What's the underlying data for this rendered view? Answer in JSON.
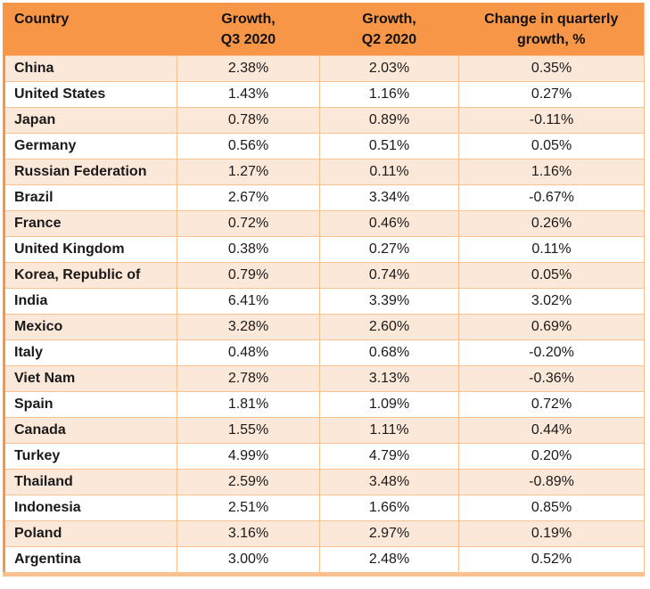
{
  "colors": {
    "header_bg": "#F79646",
    "odd_row_bg": "#FCE8D9",
    "even_row_bg": "#FFFFFF",
    "gridline": "#FAC090",
    "left_border": "#F79646",
    "bottom_border": "#FAC090",
    "text": "#1A1A1A"
  },
  "table": {
    "headers": {
      "country": "Country",
      "q3": "Growth,\nQ3 2020",
      "q2": "Growth,\nQ2 2020",
      "change": "Change in quarterly\ngrowth, %"
    },
    "rows": [
      {
        "country": "China",
        "q3": "2.38%",
        "q2": "2.03%",
        "change": "0.35%"
      },
      {
        "country": "United States",
        "q3": "1.43%",
        "q2": "1.16%",
        "change": "0.27%"
      },
      {
        "country": "Japan",
        "q3": "0.78%",
        "q2": "0.89%",
        "change": "-0.11%"
      },
      {
        "country": "Germany",
        "q3": "0.56%",
        "q2": "0.51%",
        "change": "0.05%"
      },
      {
        "country": "Russian Federation",
        "q3": "1.27%",
        "q2": "0.11%",
        "change": "1.16%"
      },
      {
        "country": "Brazil",
        "q3": "2.67%",
        "q2": "3.34%",
        "change": "-0.67%"
      },
      {
        "country": "France",
        "q3": "0.72%",
        "q2": "0.46%",
        "change": "0.26%"
      },
      {
        "country": "United Kingdom",
        "q3": "0.38%",
        "q2": "0.27%",
        "change": "0.11%"
      },
      {
        "country": "Korea, Republic of",
        "q3": "0.79%",
        "q2": "0.74%",
        "change": "0.05%"
      },
      {
        "country": "India",
        "q3": "6.41%",
        "q2": "3.39%",
        "change": "3.02%"
      },
      {
        "country": "Mexico",
        "q3": "3.28%",
        "q2": "2.60%",
        "change": "0.69%"
      },
      {
        "country": "Italy",
        "q3": "0.48%",
        "q2": "0.68%",
        "change": "-0.20%"
      },
      {
        "country": "Viet Nam",
        "q3": "2.78%",
        "q2": "3.13%",
        "change": "-0.36%"
      },
      {
        "country": "Spain",
        "q3": "1.81%",
        "q2": "1.09%",
        "change": "0.72%"
      },
      {
        "country": "Canada",
        "q3": "1.55%",
        "q2": "1.11%",
        "change": "0.44%"
      },
      {
        "country": "Turkey",
        "q3": "4.99%",
        "q2": "4.79%",
        "change": "0.20%"
      },
      {
        "country": "Thailand",
        "q3": "2.59%",
        "q2": "3.48%",
        "change": "-0.89%"
      },
      {
        "country": "Indonesia",
        "q3": "2.51%",
        "q2": "1.66%",
        "change": "0.85%"
      },
      {
        "country": "Poland",
        "q3": "3.16%",
        "q2": "2.97%",
        "change": "0.19%"
      },
      {
        "country": "Argentina",
        "q3": "3.00%",
        "q2": "2.48%",
        "change": "0.52%"
      }
    ]
  },
  "chart_data": {
    "type": "table",
    "title": "",
    "columns": [
      "Country",
      "Growth, Q3 2020",
      "Growth, Q2 2020",
      "Change in quarterly growth, %"
    ],
    "categories": [
      "China",
      "United States",
      "Japan",
      "Germany",
      "Russian Federation",
      "Brazil",
      "France",
      "United Kingdom",
      "Korea, Republic of",
      "India",
      "Mexico",
      "Italy",
      "Viet Nam",
      "Spain",
      "Canada",
      "Turkey",
      "Thailand",
      "Indonesia",
      "Poland",
      "Argentina"
    ],
    "series": [
      {
        "name": "Growth, Q3 2020",
        "values": [
          2.38,
          1.43,
          0.78,
          0.56,
          1.27,
          2.67,
          0.72,
          0.38,
          0.79,
          6.41,
          3.28,
          0.48,
          2.78,
          1.81,
          1.55,
          4.99,
          2.59,
          2.51,
          3.16,
          3.0
        ]
      },
      {
        "name": "Growth, Q2 2020",
        "values": [
          2.03,
          1.16,
          0.89,
          0.51,
          0.11,
          3.34,
          0.46,
          0.27,
          0.74,
          3.39,
          2.6,
          0.68,
          3.13,
          1.09,
          1.11,
          4.79,
          3.48,
          1.66,
          2.97,
          2.48
        ]
      },
      {
        "name": "Change in quarterly growth, %",
        "values": [
          0.35,
          0.27,
          -0.11,
          0.05,
          1.16,
          -0.67,
          0.26,
          0.11,
          0.05,
          3.02,
          0.69,
          -0.2,
          -0.36,
          0.72,
          0.44,
          0.2,
          -0.89,
          0.85,
          0.19,
          0.52
        ]
      }
    ],
    "unit": "%"
  }
}
